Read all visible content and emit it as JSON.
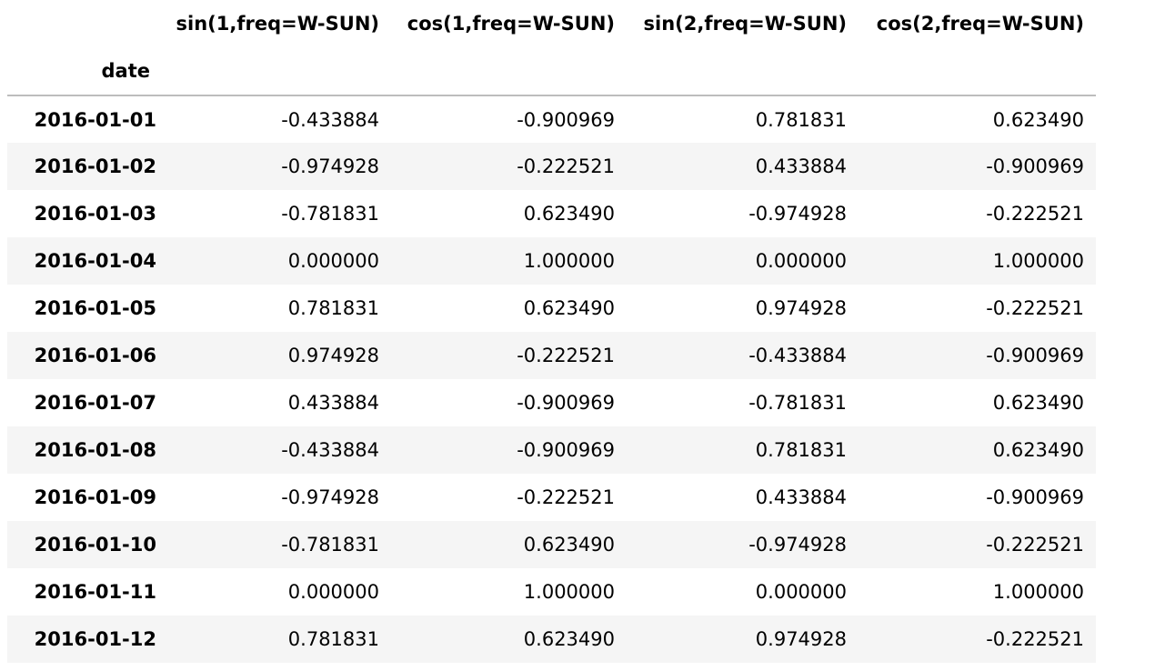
{
  "table": {
    "index_name": "date",
    "columns": [
      "sin(1,freq=W-SUN)",
      "cos(1,freq=W-SUN)",
      "sin(2,freq=W-SUN)",
      "cos(2,freq=W-SUN)"
    ],
    "rows": [
      {
        "date": "2016-01-01",
        "values": [
          "-0.433884",
          "-0.900969",
          "0.781831",
          "0.623490"
        ]
      },
      {
        "date": "2016-01-02",
        "values": [
          "-0.974928",
          "-0.222521",
          "0.433884",
          "-0.900969"
        ]
      },
      {
        "date": "2016-01-03",
        "values": [
          "-0.781831",
          "0.623490",
          "-0.974928",
          "-0.222521"
        ]
      },
      {
        "date": "2016-01-04",
        "values": [
          "0.000000",
          "1.000000",
          "0.000000",
          "1.000000"
        ]
      },
      {
        "date": "2016-01-05",
        "values": [
          "0.781831",
          "0.623490",
          "0.974928",
          "-0.222521"
        ]
      },
      {
        "date": "2016-01-06",
        "values": [
          "0.974928",
          "-0.222521",
          "-0.433884",
          "-0.900969"
        ]
      },
      {
        "date": "2016-01-07",
        "values": [
          "0.433884",
          "-0.900969",
          "-0.781831",
          "0.623490"
        ]
      },
      {
        "date": "2016-01-08",
        "values": [
          "-0.433884",
          "-0.900969",
          "0.781831",
          "0.623490"
        ]
      },
      {
        "date": "2016-01-09",
        "values": [
          "-0.974928",
          "-0.222521",
          "0.433884",
          "-0.900969"
        ]
      },
      {
        "date": "2016-01-10",
        "values": [
          "-0.781831",
          "0.623490",
          "-0.974928",
          "-0.222521"
        ]
      },
      {
        "date": "2016-01-11",
        "values": [
          "0.000000",
          "1.000000",
          "0.000000",
          "1.000000"
        ]
      },
      {
        "date": "2016-01-12",
        "values": [
          "0.781831",
          "0.623490",
          "0.974928",
          "-0.222521"
        ]
      }
    ]
  }
}
